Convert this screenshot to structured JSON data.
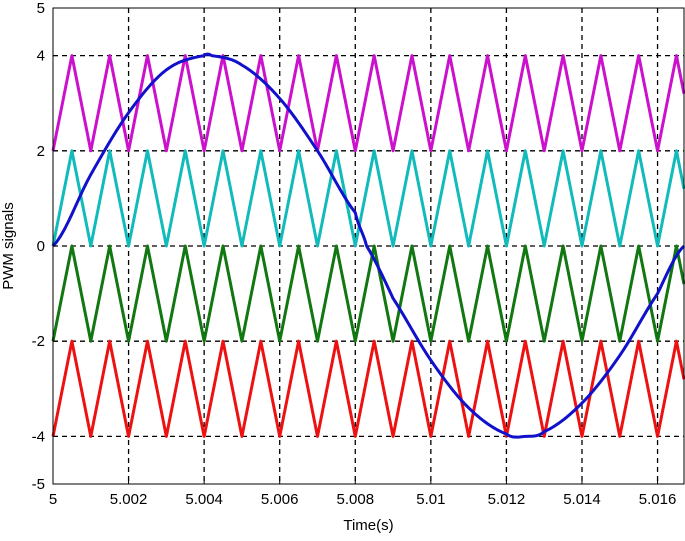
{
  "chart_data": {
    "type": "line",
    "title": "",
    "xlabel": "Time(s)",
    "ylabel": "PWM signals",
    "xlim": [
      5.0,
      5.0167
    ],
    "ylim": [
      -5,
      5
    ],
    "xticks": [
      5.0,
      5.002,
      5.004,
      5.006,
      5.008,
      5.01,
      5.012,
      5.014,
      5.016
    ],
    "xtick_labels": [
      "5",
      "5.002",
      "5.004",
      "5.006",
      "5.008",
      "5.01",
      "5.012",
      "5.014",
      "5.016"
    ],
    "yticks": [
      5,
      4,
      2,
      0,
      -2,
      -4,
      -5
    ],
    "ytick_labels": [
      "5",
      "4",
      "2",
      "0",
      "-2",
      "-4",
      "-5"
    ],
    "grid": true,
    "grid_style": "dashed",
    "legend": "none",
    "series": [
      {
        "color": "#cc11cc",
        "kind": "triangular carrier",
        "min": 2,
        "max": 4,
        "x": [
          5.0,
          5.0005,
          5.001,
          5.0015,
          5.002,
          5.0025,
          5.003,
          5.0035,
          5.004,
          5.0045,
          5.005,
          5.0055,
          5.006,
          5.0065,
          5.007,
          5.0075,
          5.008,
          5.0085,
          5.009,
          5.0095,
          5.01,
          5.0105,
          5.011,
          5.0115,
          5.012,
          5.0125,
          5.013,
          5.0135,
          5.014,
          5.0145,
          5.015,
          5.0155,
          5.016,
          5.0165,
          5.0167
        ],
        "values": [
          2,
          4,
          2,
          4,
          2,
          4,
          2,
          4,
          2,
          4,
          2,
          4,
          2,
          4,
          2,
          4,
          2,
          4,
          2,
          4,
          2,
          4,
          2,
          4,
          2,
          4,
          2,
          4,
          2,
          4,
          2,
          4,
          2,
          4,
          3.2
        ]
      },
      {
        "color": "#11bbbb",
        "kind": "triangular carrier",
        "min": 0,
        "max": 2,
        "x": [
          5.0,
          5.0005,
          5.001,
          5.0015,
          5.002,
          5.0025,
          5.003,
          5.0035,
          5.004,
          5.0045,
          5.005,
          5.0055,
          5.006,
          5.0065,
          5.007,
          5.0075,
          5.008,
          5.0085,
          5.009,
          5.0095,
          5.01,
          5.0105,
          5.011,
          5.0115,
          5.012,
          5.0125,
          5.013,
          5.0135,
          5.014,
          5.0145,
          5.015,
          5.0155,
          5.016,
          5.0165,
          5.0167
        ],
        "values": [
          0,
          2,
          0,
          2,
          0,
          2,
          0,
          2,
          0,
          2,
          0,
          2,
          0,
          2,
          0,
          2,
          0,
          2,
          0,
          2,
          0,
          2,
          0,
          2,
          0,
          2,
          0,
          2,
          0,
          2,
          0,
          2,
          0,
          2,
          1.2
        ]
      },
      {
        "color": "#117711",
        "kind": "triangular carrier",
        "min": -2,
        "max": 0,
        "x": [
          5.0,
          5.0005,
          5.001,
          5.0015,
          5.002,
          5.0025,
          5.003,
          5.0035,
          5.004,
          5.0045,
          5.005,
          5.0055,
          5.006,
          5.0065,
          5.007,
          5.0075,
          5.008,
          5.0085,
          5.009,
          5.0095,
          5.01,
          5.0105,
          5.011,
          5.0115,
          5.012,
          5.0125,
          5.013,
          5.0135,
          5.014,
          5.0145,
          5.015,
          5.0155,
          5.016,
          5.0165,
          5.0167
        ],
        "values": [
          -2,
          0,
          -2,
          0,
          -2,
          0,
          -2,
          0,
          -2,
          0,
          -2,
          0,
          -2,
          0,
          -2,
          0,
          -2,
          0,
          -2,
          0,
          -2,
          0,
          -2,
          0,
          -2,
          0,
          -2,
          0,
          -2,
          0,
          -2,
          0,
          -2,
          0,
          -0.8
        ]
      },
      {
        "color": "#ee1111",
        "kind": "triangular carrier",
        "min": -4,
        "max": -2,
        "x": [
          5.0,
          5.0005,
          5.001,
          5.0015,
          5.002,
          5.0025,
          5.003,
          5.0035,
          5.004,
          5.0045,
          5.005,
          5.0055,
          5.006,
          5.0065,
          5.007,
          5.0075,
          5.008,
          5.0085,
          5.009,
          5.0095,
          5.01,
          5.0105,
          5.011,
          5.0115,
          5.012,
          5.0125,
          5.013,
          5.0135,
          5.014,
          5.0145,
          5.015,
          5.0155,
          5.016,
          5.0165,
          5.0167
        ],
        "values": [
          -4,
          -2,
          -4,
          -2,
          -4,
          -2,
          -4,
          -2,
          -4,
          -2,
          -4,
          -2,
          -4,
          -2,
          -4,
          -2,
          -4,
          -2,
          -4,
          -2,
          -4,
          -2,
          -4,
          -2,
          -4,
          -2,
          -4,
          -2,
          -4,
          -2,
          -4,
          -2,
          -4,
          -2,
          -2.8
        ]
      },
      {
        "color": "#1111cc",
        "kind": "sinusoidal reference",
        "x": [
          5.0,
          5.001,
          5.002,
          5.003,
          5.004,
          5.0042,
          5.005,
          5.006,
          5.007,
          5.008,
          5.0083,
          5.009,
          5.01,
          5.011,
          5.012,
          5.0125,
          5.013,
          5.014,
          5.015,
          5.016,
          5.0167
        ],
        "values": [
          0,
          1.5,
          2.8,
          3.7,
          4.0,
          4.0,
          3.8,
          3.1,
          2.0,
          0.7,
          0,
          -1.1,
          -2.4,
          -3.4,
          -3.95,
          -4.0,
          -3.9,
          -3.3,
          -2.3,
          -1.0,
          0
        ]
      }
    ]
  }
}
